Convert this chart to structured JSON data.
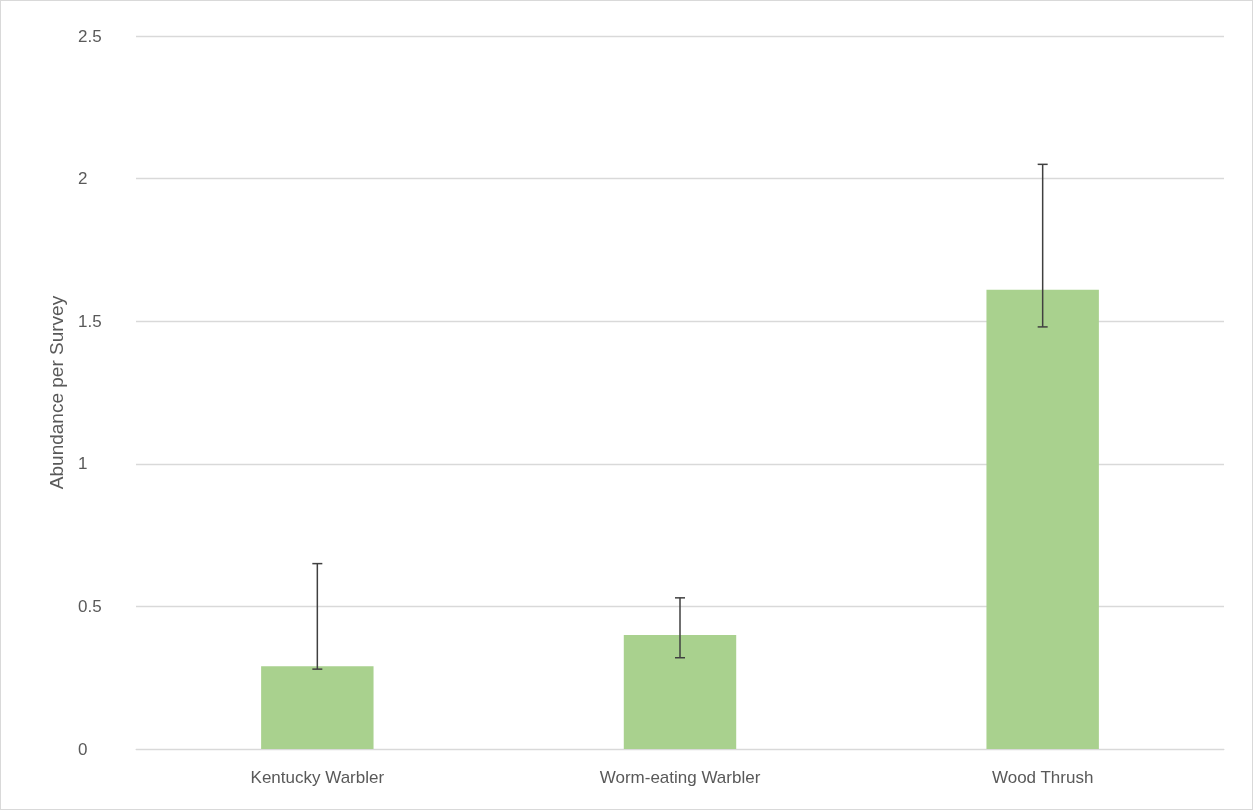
{
  "chart_data": {
    "type": "bar",
    "ylabel": "Abundance per Survey",
    "categories": [
      "Kentucky Warbler",
      "Worm-eating Warbler",
      "Wood Thrush"
    ],
    "values": [
      0.29,
      0.4,
      1.61
    ],
    "errors": [
      [
        0.28,
        0.65
      ],
      [
        0.32,
        0.53
      ],
      [
        1.48,
        2.05
      ]
    ],
    "color": "#a9d18e",
    "ylim": [
      0,
      2.5
    ],
    "yticks": [
      0,
      0.5,
      1,
      1.5,
      2,
      2.5
    ],
    "grid": "y"
  }
}
